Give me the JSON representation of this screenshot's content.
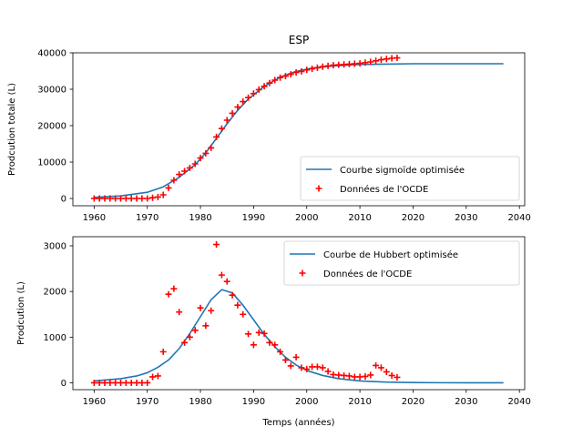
{
  "figure": {
    "title": "ESP"
  },
  "chart_data": [
    {
      "type": "line",
      "title": "ESP",
      "xlabel": "",
      "ylabel": "Prodcution totale (L)",
      "xlim": [
        1956,
        2041
      ],
      "ylim": [
        -2000,
        40000
      ],
      "xticks": [
        1960,
        1970,
        1980,
        1990,
        2000,
        2010,
        2020,
        2030,
        2040
      ],
      "yticks": [
        0,
        10000,
        20000,
        30000,
        40000
      ],
      "legend_position": "lower-right",
      "grid": false,
      "series": [
        {
          "name": "Courbe sigmoïde optimisée",
          "kind": "line",
          "color": "#1f77b4",
          "x": [
            1960,
            1965,
            1970,
            1973,
            1976,
            1979,
            1981,
            1983,
            1985,
            1987,
            1989,
            1992,
            1995,
            1998,
            2001,
            2005,
            2010,
            2015,
            2020,
            2025,
            2030,
            2037
          ],
          "y": [
            300,
            700,
            1700,
            3200,
            5800,
            9300,
            12500,
            16500,
            20500,
            24200,
            27300,
            30800,
            33300,
            34900,
            35800,
            36400,
            36800,
            36900,
            37000,
            37000,
            37000,
            37000
          ]
        },
        {
          "name": "Données de l'OCDE",
          "kind": "scatter",
          "marker": "plus",
          "color": "#ff0000",
          "x": [
            1960,
            1961,
            1962,
            1963,
            1964,
            1965,
            1966,
            1967,
            1968,
            1969,
            1970,
            1971,
            1972,
            1973,
            1974,
            1975,
            1976,
            1977,
            1978,
            1979,
            1980,
            1981,
            1982,
            1983,
            1984,
            1985,
            1986,
            1987,
            1988,
            1989,
            1990,
            1991,
            1992,
            1993,
            1994,
            1995,
            1996,
            1997,
            1998,
            1999,
            2000,
            2001,
            2002,
            2003,
            2004,
            2005,
            2006,
            2007,
            2008,
            2009,
            2010,
            2011,
            2012,
            2013,
            2014,
            2015,
            2016,
            2017
          ],
          "y": [
            0,
            0,
            0,
            0,
            0,
            0,
            0,
            0,
            0,
            0,
            0,
            200,
            400,
            1000,
            2900,
            5000,
            6600,
            7500,
            8400,
            9500,
            11100,
            12400,
            13900,
            16900,
            19200,
            21500,
            23400,
            25100,
            26600,
            27700,
            28800,
            29900,
            30800,
            31700,
            32500,
            33200,
            33600,
            34100,
            34600,
            34900,
            35300,
            35600,
            35900,
            36200,
            36400,
            36600,
            36700,
            36800,
            36900,
            37000,
            37100,
            37300,
            37500,
            37800,
            38100,
            38300,
            38500,
            38600
          ]
        }
      ]
    },
    {
      "type": "line",
      "title": "",
      "xlabel": "Temps (années)",
      "ylabel": "Prodcution (L)",
      "xlim": [
        1956,
        2041
      ],
      "ylim": [
        -150,
        3200
      ],
      "xticks": [
        1960,
        1970,
        1980,
        1990,
        2000,
        2010,
        2020,
        2030,
        2040
      ],
      "yticks": [
        0,
        1000,
        2000,
        3000
      ],
      "legend_position": "upper-right",
      "grid": false,
      "series": [
        {
          "name": "Courbe de Hubbert optimisée",
          "kind": "line",
          "color": "#1f77b4",
          "x": [
            1960,
            1965,
            1968,
            1970,
            1972,
            1974,
            1976,
            1978,
            1980,
            1982,
            1984,
            1986,
            1988,
            1990,
            1992,
            1994,
            1996,
            1998,
            2000,
            2003,
            2006,
            2010,
            2015,
            2020,
            2025,
            2030,
            2037
          ],
          "y": [
            40,
            90,
            150,
            220,
            340,
            500,
            750,
            1080,
            1450,
            1820,
            2040,
            1970,
            1700,
            1380,
            1060,
            790,
            560,
            390,
            270,
            160,
            90,
            40,
            15,
            6,
            2,
            1,
            0
          ]
        },
        {
          "name": "Données de l'OCDE",
          "kind": "scatter",
          "marker": "plus",
          "color": "#ff0000",
          "x": [
            1960,
            1961,
            1962,
            1963,
            1964,
            1965,
            1966,
            1967,
            1968,
            1969,
            1970,
            1971,
            1972,
            1973,
            1974,
            1975,
            1976,
            1977,
            1978,
            1979,
            1980,
            1981,
            1982,
            1983,
            1984,
            1985,
            1986,
            1987,
            1988,
            1989,
            1990,
            1991,
            1992,
            1993,
            1994,
            1995,
            1996,
            1997,
            1998,
            1999,
            2000,
            2001,
            2002,
            2003,
            2004,
            2005,
            2006,
            2007,
            2008,
            2009,
            2010,
            2011,
            2012,
            2013,
            2014,
            2015,
            2016,
            2017
          ],
          "y": [
            0,
            0,
            0,
            0,
            0,
            0,
            0,
            0,
            0,
            0,
            0,
            130,
            150,
            680,
            1940,
            2060,
            1550,
            880,
            1000,
            1150,
            1640,
            1250,
            1580,
            3030,
            2360,
            2220,
            1920,
            1700,
            1500,
            1070,
            830,
            1100,
            1080,
            880,
            830,
            680,
            500,
            370,
            560,
            330,
            300,
            350,
            350,
            330,
            250,
            180,
            170,
            160,
            150,
            130,
            130,
            140,
            170,
            380,
            330,
            240,
            160,
            120
          ]
        }
      ]
    }
  ]
}
